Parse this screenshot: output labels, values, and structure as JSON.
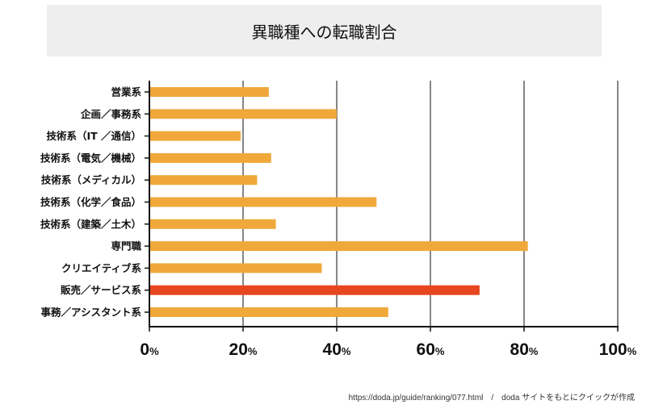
{
  "title": "異職種への転職割合",
  "source": "https://doda.jp/guide/ranking/077.html　/　doda サイトをもとにクイックが作成",
  "colors": {
    "bar": "#F0A83A",
    "highlight": "#E8461E",
    "grid": "#444444",
    "axis": "#111111",
    "title_bg": "#EEEEEE"
  },
  "chart_data": {
    "type": "bar",
    "orientation": "horizontal",
    "title": "異職種への転職割合",
    "categories": [
      "営業系",
      "企画／事務系",
      "技術系（IT ／通信）",
      "技術系（電気／機械）",
      "技術系（メディカル）",
      "技術系（化学／食品）",
      "技術系（建築／土木）",
      "専門職",
      "クリエイティブ系",
      "販売／サービス系",
      "事務／アシスタント系"
    ],
    "values": [
      25.5,
      40,
      19.5,
      26,
      23,
      48.5,
      27,
      80.8,
      36.8,
      70.5,
      51
    ],
    "highlight_index": 9,
    "xlim": [
      0,
      100
    ],
    "xticks": [
      0,
      20,
      40,
      60,
      80,
      100
    ],
    "tick_unit": "%",
    "grid": true
  }
}
